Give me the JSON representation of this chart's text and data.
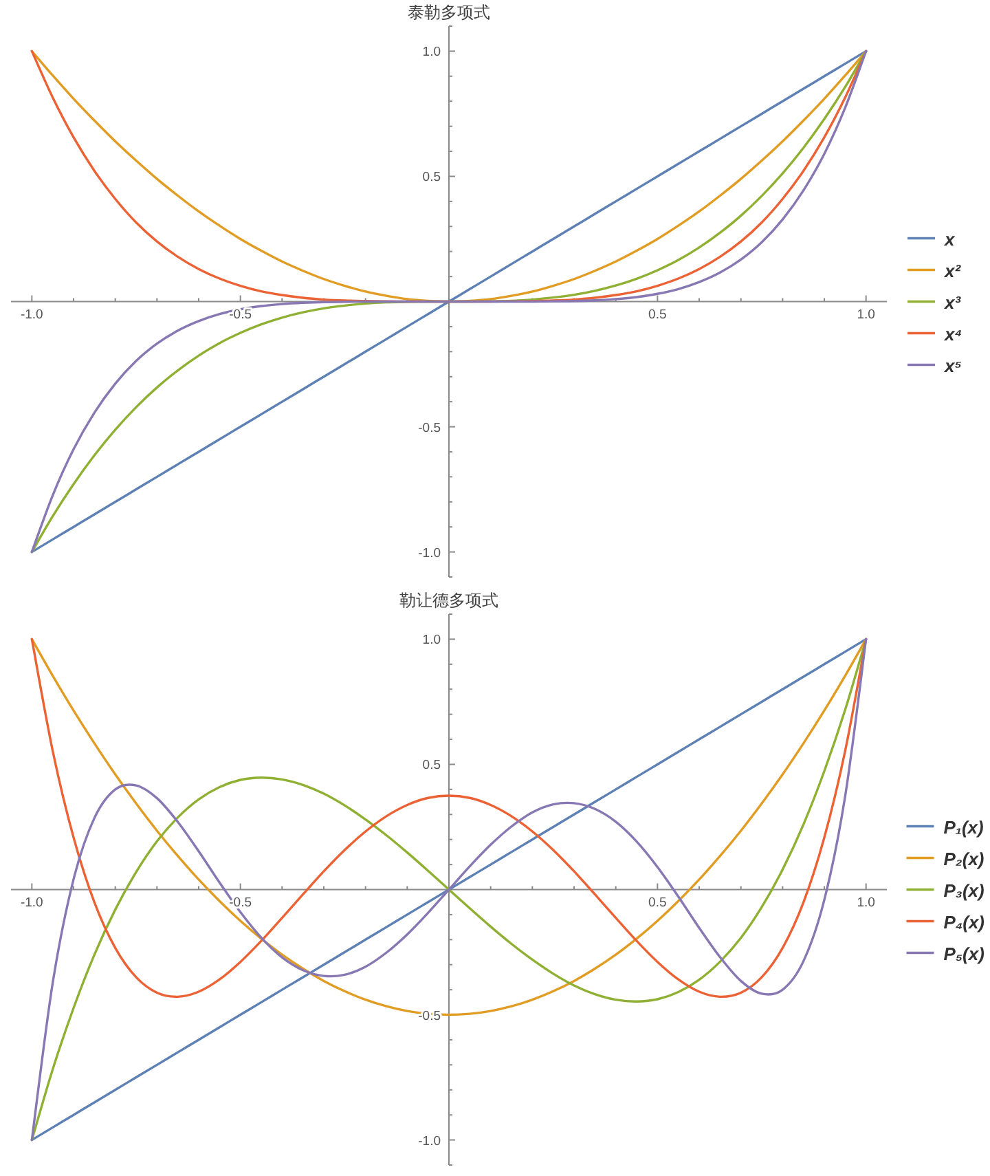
{
  "chart_data": [
    {
      "type": "line",
      "title": "泰勒多项式",
      "x": [
        -1,
        -0.95,
        -0.9,
        -0.85,
        -0.8,
        -0.75,
        -0.7,
        -0.65,
        -0.6,
        -0.55,
        -0.5,
        -0.45,
        -0.4,
        -0.35,
        -0.3,
        -0.25,
        -0.2,
        -0.15,
        -0.1,
        -0.05,
        0,
        0.05,
        0.1,
        0.15,
        0.2,
        0.25,
        0.3,
        0.35,
        0.4,
        0.45,
        0.5,
        0.55,
        0.6,
        0.65,
        0.7,
        0.75,
        0.8,
        0.85,
        0.9,
        0.95,
        1
      ],
      "series": [
        {
          "name": "x",
          "color": "#5e81b5",
          "values": [
            -1,
            -0.95,
            -0.9,
            -0.85,
            -0.8,
            -0.75,
            -0.7,
            -0.65,
            -0.6,
            -0.55,
            -0.5,
            -0.45,
            -0.4,
            -0.35,
            -0.3,
            -0.25,
            -0.2,
            -0.15,
            -0.1,
            -0.05,
            0,
            0.05,
            0.1,
            0.15,
            0.2,
            0.25,
            0.3,
            0.35,
            0.4,
            0.45,
            0.5,
            0.55,
            0.6,
            0.65,
            0.7,
            0.75,
            0.8,
            0.85,
            0.9,
            0.95,
            1
          ]
        },
        {
          "name": "x²",
          "color": "#e19c24",
          "values": [
            1,
            0.903,
            0.81,
            0.723,
            0.64,
            0.563,
            0.49,
            0.423,
            0.36,
            0.303,
            0.25,
            0.203,
            0.16,
            0.123,
            0.09,
            0.063,
            0.04,
            0.023,
            0.01,
            0.003,
            0,
            0.003,
            0.01,
            0.023,
            0.04,
            0.063,
            0.09,
            0.123,
            0.16,
            0.203,
            0.25,
            0.303,
            0.36,
            0.423,
            0.49,
            0.563,
            0.64,
            0.723,
            0.81,
            0.903,
            1
          ]
        },
        {
          "name": "x³",
          "color": "#8fb032",
          "values": [
            -1,
            -0.857,
            -0.729,
            -0.614,
            -0.512,
            -0.422,
            -0.343,
            -0.275,
            -0.216,
            -0.166,
            -0.125,
            -0.091,
            -0.064,
            -0.043,
            -0.027,
            -0.016,
            -0.008,
            -0.003,
            -0.001,
            0,
            0,
            0,
            0.001,
            0.003,
            0.008,
            0.016,
            0.027,
            0.043,
            0.064,
            0.091,
            0.125,
            0.166,
            0.216,
            0.275,
            0.343,
            0.422,
            0.512,
            0.614,
            0.729,
            0.857,
            1
          ]
        },
        {
          "name": "x⁴",
          "color": "#eb6235",
          "values": [
            1,
            0.815,
            0.656,
            0.522,
            0.41,
            0.316,
            0.24,
            0.179,
            0.13,
            0.092,
            0.063,
            0.041,
            0.026,
            0.015,
            0.008,
            0.004,
            0.002,
            0.001,
            0,
            0,
            0,
            0,
            0,
            0.001,
            0.002,
            0.004,
            0.008,
            0.015,
            0.026,
            0.041,
            0.063,
            0.092,
            0.13,
            0.179,
            0.24,
            0.316,
            0.41,
            0.522,
            0.656,
            0.815,
            1
          ]
        },
        {
          "name": "x⁵",
          "color": "#8778b3",
          "values": [
            -1,
            -0.774,
            -0.59,
            -0.444,
            -0.328,
            -0.237,
            -0.168,
            -0.116,
            -0.078,
            -0.05,
            -0.031,
            -0.018,
            -0.01,
            -0.005,
            -0.002,
            -0.001,
            0,
            0,
            0,
            0,
            0,
            0,
            0,
            0,
            0,
            0.001,
            0.002,
            0.005,
            0.01,
            0.018,
            0.031,
            0.05,
            0.078,
            0.116,
            0.168,
            0.237,
            0.328,
            0.444,
            0.59,
            0.774,
            1
          ]
        }
      ],
      "xlim": [
        -1.05,
        1.05
      ],
      "ylim": [
        -1.1,
        1.1
      ],
      "xticks": [
        {
          "value": -1,
          "label": "-1.0"
        },
        {
          "value": -0.9,
          "label": null
        },
        {
          "value": -0.8,
          "label": null
        },
        {
          "value": -0.7,
          "label": null
        },
        {
          "value": -0.6,
          "label": null
        },
        {
          "value": -0.5,
          "label": "-0.5"
        },
        {
          "value": -0.4,
          "label": null
        },
        {
          "value": -0.3,
          "label": null
        },
        {
          "value": -0.2,
          "label": null
        },
        {
          "value": -0.1,
          "label": null
        },
        {
          "value": 0.1,
          "label": null
        },
        {
          "value": 0.2,
          "label": null
        },
        {
          "value": 0.3,
          "label": null
        },
        {
          "value": 0.4,
          "label": null
        },
        {
          "value": 0.5,
          "label": "0.5"
        },
        {
          "value": 0.6,
          "label": null
        },
        {
          "value": 0.7,
          "label": null
        },
        {
          "value": 0.8,
          "label": null
        },
        {
          "value": 0.9,
          "label": null
        },
        {
          "value": 1,
          "label": "1.0"
        }
      ],
      "yticks": [
        {
          "value": -1.1,
          "label": null
        },
        {
          "value": -1,
          "label": "-1.0"
        },
        {
          "value": -0.9,
          "label": null
        },
        {
          "value": -0.8,
          "label": null
        },
        {
          "value": -0.7,
          "label": null
        },
        {
          "value": -0.6,
          "label": null
        },
        {
          "value": -0.5,
          "label": "-0.5"
        },
        {
          "value": -0.4,
          "label": null
        },
        {
          "value": -0.3,
          "label": null
        },
        {
          "value": -0.2,
          "label": null
        },
        {
          "value": -0.1,
          "label": null
        },
        {
          "value": 0.1,
          "label": null
        },
        {
          "value": 0.2,
          "label": null
        },
        {
          "value": 0.3,
          "label": null
        },
        {
          "value": 0.4,
          "label": null
        },
        {
          "value": 0.5,
          "label": "0.5"
        },
        {
          "value": 0.6,
          "label": null
        },
        {
          "value": 0.7,
          "label": null
        },
        {
          "value": 0.8,
          "label": null
        },
        {
          "value": 0.9,
          "label": null
        },
        {
          "value": 1,
          "label": "1.0"
        },
        {
          "value": 1.1,
          "label": null
        }
      ],
      "legend": "right"
    },
    {
      "type": "line",
      "title": "勒让德多项式",
      "x": [
        -1,
        -0.95,
        -0.9,
        -0.85,
        -0.8,
        -0.75,
        -0.7,
        -0.65,
        -0.6,
        -0.55,
        -0.5,
        -0.45,
        -0.4,
        -0.35,
        -0.3,
        -0.25,
        -0.2,
        -0.15,
        -0.1,
        -0.05,
        0,
        0.05,
        0.1,
        0.15,
        0.2,
        0.25,
        0.3,
        0.35,
        0.4,
        0.45,
        0.5,
        0.55,
        0.6,
        0.65,
        0.7,
        0.75,
        0.8,
        0.85,
        0.9,
        0.95,
        1
      ],
      "series": [
        {
          "name": "P₁(x)",
          "color": "#5e81b5",
          "values": [
            -1,
            -0.95,
            -0.9,
            -0.85,
            -0.8,
            -0.75,
            -0.7,
            -0.65,
            -0.6,
            -0.55,
            -0.5,
            -0.45,
            -0.4,
            -0.35,
            -0.3,
            -0.25,
            -0.2,
            -0.15,
            -0.1,
            -0.05,
            0,
            0.05,
            0.1,
            0.15,
            0.2,
            0.25,
            0.3,
            0.35,
            0.4,
            0.45,
            0.5,
            0.55,
            0.6,
            0.65,
            0.7,
            0.75,
            0.8,
            0.85,
            0.9,
            0.95,
            1
          ]
        },
        {
          "name": "P₂(x)",
          "color": "#e19c24",
          "values": [
            1,
            0.854,
            0.715,
            0.584,
            0.46,
            0.344,
            0.235,
            0.134,
            0.04,
            -0.046,
            -0.125,
            -0.196,
            -0.26,
            -0.316,
            -0.365,
            -0.406,
            -0.44,
            -0.466,
            -0.485,
            -0.496,
            -0.5,
            -0.496,
            -0.485,
            -0.466,
            -0.44,
            -0.406,
            -0.365,
            -0.316,
            -0.26,
            -0.196,
            -0.125,
            -0.046,
            0.04,
            0.134,
            0.235,
            0.344,
            0.46,
            0.584,
            0.715,
            0.854,
            1
          ]
        },
        {
          "name": "P₃(x)",
          "color": "#8fb032",
          "values": [
            -1,
            -0.718,
            -0.473,
            -0.26,
            -0.08,
            0.07,
            0.193,
            0.288,
            0.36,
            0.409,
            0.438,
            0.447,
            0.44,
            0.418,
            0.383,
            0.336,
            0.28,
            0.217,
            0.148,
            0.075,
            0,
            -0.075,
            -0.148,
            -0.217,
            -0.28,
            -0.336,
            -0.383,
            -0.418,
            -0.44,
            -0.447,
            -0.438,
            -0.409,
            -0.36,
            -0.288,
            -0.193,
            -0.07,
            0.08,
            0.26,
            0.473,
            0.718,
            1
          ]
        },
        {
          "name": "P₄(x)",
          "color": "#eb6235",
          "values": [
            1,
            0.554,
            0.208,
            -0.051,
            -0.233,
            -0.35,
            -0.412,
            -0.428,
            -0.408,
            -0.359,
            -0.289,
            -0.205,
            -0.113,
            -0.019,
            0.073,
            0.158,
            0.232,
            0.293,
            0.338,
            0.366,
            0.375,
            0.366,
            0.338,
            0.293,
            0.232,
            0.158,
            0.073,
            -0.019,
            -0.113,
            -0.205,
            -0.289,
            -0.359,
            -0.408,
            -0.428,
            -0.412,
            -0.35,
            -0.233,
            -0.051,
            0.208,
            0.554,
            1
          ]
        },
        {
          "name": "P₅(x)",
          "color": "#8778b3",
          "values": [
            -1,
            -0.373,
            0.041,
            0.286,
            0.4,
            0.416,
            0.365,
            0.27,
            0.153,
            0.028,
            -0.09,
            -0.192,
            -0.271,
            -0.322,
            -0.345,
            -0.34,
            -0.308,
            -0.252,
            -0.179,
            -0.093,
            0,
            0.093,
            0.179,
            0.252,
            0.308,
            0.34,
            0.345,
            0.322,
            0.271,
            0.192,
            0.09,
            -0.028,
            -0.153,
            -0.27,
            -0.365,
            -0.416,
            -0.4,
            -0.286,
            -0.041,
            0.373,
            1
          ]
        }
      ],
      "xlim": [
        -1.05,
        1.05
      ],
      "ylim": [
        -1.1,
        1.1
      ],
      "xticks": [
        {
          "value": -1,
          "label": "-1.0"
        },
        {
          "value": -0.9,
          "label": null
        },
        {
          "value": -0.8,
          "label": null
        },
        {
          "value": -0.7,
          "label": null
        },
        {
          "value": -0.6,
          "label": null
        },
        {
          "value": -0.5,
          "label": "-0.5"
        },
        {
          "value": -0.4,
          "label": null
        },
        {
          "value": -0.3,
          "label": null
        },
        {
          "value": -0.2,
          "label": null
        },
        {
          "value": -0.1,
          "label": null
        },
        {
          "value": 0.1,
          "label": null
        },
        {
          "value": 0.2,
          "label": null
        },
        {
          "value": 0.3,
          "label": null
        },
        {
          "value": 0.4,
          "label": null
        },
        {
          "value": 0.5,
          "label": "0.5"
        },
        {
          "value": 0.6,
          "label": null
        },
        {
          "value": 0.7,
          "label": null
        },
        {
          "value": 0.8,
          "label": null
        },
        {
          "value": 0.9,
          "label": null
        },
        {
          "value": 1,
          "label": "1.0"
        }
      ],
      "yticks": [
        {
          "value": -1.1,
          "label": null
        },
        {
          "value": -1,
          "label": "-1.0"
        },
        {
          "value": -0.9,
          "label": null
        },
        {
          "value": -0.8,
          "label": null
        },
        {
          "value": -0.7,
          "label": null
        },
        {
          "value": -0.6,
          "label": null
        },
        {
          "value": -0.5,
          "label": "-0.5"
        },
        {
          "value": -0.4,
          "label": null
        },
        {
          "value": -0.3,
          "label": null
        },
        {
          "value": -0.2,
          "label": null
        },
        {
          "value": -0.1,
          "label": null
        },
        {
          "value": 0.1,
          "label": null
        },
        {
          "value": 0.2,
          "label": null
        },
        {
          "value": 0.3,
          "label": null
        },
        {
          "value": 0.4,
          "label": null
        },
        {
          "value": 0.5,
          "label": "0.5"
        },
        {
          "value": 0.6,
          "label": null
        },
        {
          "value": 0.7,
          "label": null
        },
        {
          "value": 0.8,
          "label": null
        },
        {
          "value": 0.9,
          "label": null
        },
        {
          "value": 1,
          "label": "1.0"
        },
        {
          "value": 1.1,
          "label": null
        }
      ],
      "legend": "right"
    }
  ]
}
